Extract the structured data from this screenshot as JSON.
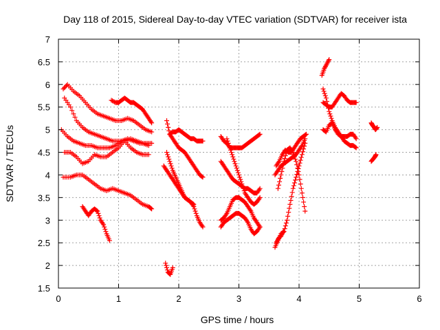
{
  "chart_data": {
    "type": "scatter",
    "title": "Day 118 of 2015, Sidereal Day-to-day VTEC variation (SDTVAR) for receiver ista",
    "xlabel": "GPS time / hours",
    "ylabel": "SDTVAR / TECUs",
    "xlim": [
      0,
      6
    ],
    "ylim": [
      1.5,
      7
    ],
    "xticks": [
      "0",
      "1",
      "2",
      "3",
      "4",
      "5",
      "6"
    ],
    "yticks": [
      "1.5",
      "2",
      "2.5",
      "3",
      "3.5",
      "4",
      "4.5",
      "5",
      "5.5",
      "6",
      "6.5",
      "7"
    ],
    "grid": true,
    "marker": "+",
    "color": "#ff0000",
    "series": [
      {
        "x": [
          0.08,
          0.15,
          0.25,
          0.35,
          0.45,
          0.55,
          0.65,
          0.75,
          0.85,
          0.95,
          1.05,
          1.15,
          1.25,
          1.35,
          1.45,
          1.55
        ],
        "y": [
          5.9,
          6.0,
          5.85,
          5.75,
          5.6,
          5.45,
          5.35,
          5.3,
          5.25,
          5.2,
          5.2,
          5.25,
          5.2,
          5.1,
          5.0,
          4.95
        ]
      },
      {
        "x": [
          0.1,
          0.2,
          0.3,
          0.4,
          0.5,
          0.6,
          0.7,
          0.8,
          0.9,
          1.0,
          1.1,
          1.2,
          1.3,
          1.4,
          1.5
        ],
        "y": [
          5.7,
          5.5,
          5.2,
          5.05,
          4.95,
          4.9,
          4.85,
          4.8,
          4.75,
          4.75,
          4.75,
          4.8,
          4.75,
          4.7,
          4.65
        ]
      },
      {
        "x": [
          0.05,
          0.15,
          0.25,
          0.35,
          0.45,
          0.55,
          0.65,
          0.75,
          0.85,
          0.95,
          1.05,
          1.15,
          1.25,
          1.35,
          1.45,
          1.55
        ],
        "y": [
          5.0,
          4.85,
          4.75,
          4.7,
          4.65,
          4.65,
          4.6,
          4.6,
          4.6,
          4.65,
          4.75,
          4.8,
          4.75,
          4.7,
          4.7,
          4.7
        ]
      },
      {
        "x": [
          0.1,
          0.2,
          0.3,
          0.4,
          0.5,
          0.6,
          0.7,
          0.8,
          0.9,
          1.0,
          1.1,
          1.2,
          1.3,
          1.4,
          1.5
        ],
        "y": [
          4.5,
          4.5,
          4.4,
          4.25,
          4.3,
          4.45,
          4.4,
          4.4,
          4.5,
          4.6,
          4.75,
          4.6,
          4.5,
          4.45,
          4.45
        ]
      },
      {
        "x": [
          0.08,
          0.2,
          0.3,
          0.4,
          0.5,
          0.6,
          0.7,
          0.8,
          0.9,
          1.0,
          1.1,
          1.2,
          1.3,
          1.4,
          1.5,
          1.55
        ],
        "y": [
          3.95,
          3.95,
          4.0,
          4.0,
          3.9,
          3.8,
          3.7,
          3.65,
          3.7,
          3.65,
          3.6,
          3.55,
          3.45,
          3.35,
          3.3,
          3.25
        ]
      },
      {
        "x": [
          0.4,
          0.45,
          0.5,
          0.55,
          0.6,
          0.65,
          0.7,
          0.75,
          0.8,
          0.85
        ],
        "y": [
          3.3,
          3.2,
          3.1,
          3.2,
          3.25,
          3.2,
          3.0,
          2.9,
          2.7,
          2.55
        ]
      },
      {
        "x": [
          0.88,
          0.95,
          1.0,
          1.05,
          1.1,
          1.15,
          1.2,
          1.25,
          1.3,
          1.35,
          1.4,
          1.45,
          1.5,
          1.55
        ],
        "y": [
          5.65,
          5.6,
          5.6,
          5.65,
          5.7,
          5.65,
          5.6,
          5.6,
          5.55,
          5.5,
          5.45,
          5.35,
          5.25,
          5.15
        ]
      },
      {
        "x": [
          1.8,
          1.85,
          1.9,
          1.95,
          2.0,
          2.05,
          2.1,
          2.15,
          2.2,
          2.25,
          2.3,
          2.35,
          2.4
        ],
        "y": [
          5.2,
          4.9,
          4.95,
          4.95,
          5.0,
          4.95,
          4.9,
          4.85,
          4.8,
          4.8,
          4.75,
          4.75,
          4.75
        ]
      },
      {
        "x": [
          1.85,
          1.9,
          1.95,
          2.0,
          2.05,
          2.1,
          2.15,
          2.2,
          2.25,
          2.3,
          2.35,
          2.4
        ],
        "y": [
          4.9,
          4.8,
          4.7,
          4.6,
          4.55,
          4.5,
          4.4,
          4.3,
          4.2,
          4.1,
          4.0,
          3.95
        ]
      },
      {
        "x": [
          1.75,
          1.8,
          1.85,
          1.9,
          1.95,
          2.0,
          2.05,
          2.1,
          2.15,
          2.2,
          2.25,
          2.3,
          2.35,
          2.4
        ],
        "y": [
          4.2,
          4.1,
          4.0,
          3.9,
          3.8,
          3.7,
          3.6,
          3.5,
          3.45,
          3.4,
          3.3,
          3.1,
          2.95,
          2.85
        ]
      },
      {
        "x": [
          1.8,
          1.85,
          1.9,
          1.95,
          2.0,
          2.05,
          2.1,
          2.15,
          2.2,
          2.25
        ],
        "y": [
          4.5,
          4.3,
          4.1,
          3.95,
          3.8,
          3.65,
          3.5,
          3.45,
          3.4,
          3.35
        ]
      },
      {
        "x": [
          1.78,
          1.82,
          1.86,
          1.9
        ],
        "y": [
          2.05,
          1.85,
          1.8,
          1.95
        ]
      },
      {
        "x": [
          2.7,
          2.75,
          2.8,
          2.85,
          2.9,
          2.95,
          3.0,
          3.05,
          3.1,
          3.15,
          3.2,
          3.25,
          3.3,
          3.35
        ],
        "y": [
          4.85,
          4.75,
          4.7,
          4.6,
          4.6,
          4.6,
          4.6,
          4.6,
          4.65,
          4.7,
          4.75,
          4.8,
          4.85,
          4.9
        ]
      },
      {
        "x": [
          2.7,
          2.75,
          2.8,
          2.85,
          2.9,
          2.95,
          3.0,
          3.05,
          3.1,
          3.15,
          3.2,
          3.25,
          3.3,
          3.35
        ],
        "y": [
          4.3,
          4.2,
          4.1,
          4.0,
          3.9,
          3.85,
          3.8,
          3.75,
          3.7,
          3.7,
          3.65,
          3.6,
          3.6,
          3.7
        ]
      },
      {
        "x": [
          2.7,
          2.75,
          2.8,
          2.85,
          2.9,
          2.95,
          3.0,
          3.05,
          3.1,
          3.15,
          3.2,
          3.25,
          3.3,
          3.35
        ],
        "y": [
          3.0,
          3.05,
          3.15,
          3.3,
          3.45,
          3.5,
          3.5,
          3.45,
          3.4,
          3.3,
          3.2,
          3.05,
          2.95,
          2.85
        ]
      },
      {
        "x": [
          2.7,
          2.75,
          2.8,
          2.85,
          2.9,
          2.95,
          3.0,
          3.05,
          3.1,
          3.15,
          3.2,
          3.25,
          3.3,
          3.35
        ],
        "y": [
          2.85,
          2.95,
          3.0,
          3.05,
          3.1,
          3.15,
          3.15,
          3.1,
          3.05,
          2.95,
          2.8,
          2.7,
          2.75,
          2.85
        ]
      },
      {
        "x": [
          2.8,
          2.85,
          2.9,
          2.95,
          3.0,
          3.05,
          3.1,
          3.15,
          3.2,
          3.25,
          3.3,
          3.35
        ],
        "y": [
          4.8,
          4.6,
          4.4,
          4.2,
          4.0,
          3.8,
          3.6,
          3.5,
          3.4,
          3.35,
          3.4,
          3.5
        ]
      },
      {
        "x": [
          3.6,
          3.65,
          3.7,
          3.75,
          3.8,
          3.85,
          3.9,
          3.95,
          4.0,
          4.05,
          4.1
        ],
        "y": [
          2.4,
          2.55,
          2.7,
          2.75,
          3.0,
          3.35,
          3.7,
          3.95,
          4.2,
          4.45,
          4.7
        ]
      },
      {
        "x": [
          3.6,
          3.65,
          3.7,
          3.75,
          3.8,
          3.85,
          3.9,
          3.95,
          4.0,
          4.05,
          4.1
        ],
        "y": [
          4.0,
          4.1,
          4.2,
          4.25,
          4.3,
          4.35,
          4.4,
          4.45,
          4.55,
          4.65,
          4.8
        ]
      },
      {
        "x": [
          3.62,
          3.67,
          3.72,
          3.77,
          3.82,
          3.87,
          3.92,
          3.97,
          4.02,
          4.07,
          4.12
        ],
        "y": [
          4.2,
          4.3,
          4.45,
          4.55,
          4.5,
          4.5,
          4.6,
          4.7,
          4.8,
          4.85,
          4.9
        ]
      },
      {
        "x": [
          3.65,
          3.7,
          3.75,
          3.8,
          3.85,
          3.9,
          3.95,
          4.0,
          4.05,
          4.1
        ],
        "y": [
          3.7,
          4.0,
          4.3,
          4.55,
          4.6,
          4.5,
          4.3,
          4.0,
          3.6,
          3.2
        ]
      },
      {
        "x": [
          3.62,
          3.66,
          3.7,
          3.74
        ],
        "y": [
          2.5,
          2.6,
          2.65,
          2.75
        ]
      },
      {
        "x": [
          4.4,
          4.45,
          4.5,
          4.55,
          4.6,
          4.65,
          4.7,
          4.75,
          4.8,
          4.85,
          4.9,
          4.95
        ],
        "y": [
          5.6,
          5.55,
          5.5,
          5.5,
          5.6,
          5.7,
          5.8,
          5.75,
          5.65,
          5.6,
          5.6,
          5.6
        ]
      },
      {
        "x": [
          4.4,
          4.45,
          4.5,
          4.55,
          4.6,
          4.65,
          4.7,
          4.75,
          4.8,
          4.85,
          4.9,
          4.95
        ],
        "y": [
          5.0,
          4.95,
          5.1,
          5.15,
          5.0,
          4.9,
          4.85,
          4.85,
          4.85,
          4.9,
          4.9,
          4.8
        ]
      },
      {
        "x": [
          4.4,
          4.45,
          4.5,
          4.55,
          4.6,
          4.65,
          4.7,
          4.75,
          4.8,
          4.85,
          4.9,
          4.95
        ],
        "y": [
          5.9,
          5.7,
          5.4,
          5.2,
          5.05,
          4.95,
          4.85,
          4.75,
          4.7,
          4.65,
          4.65,
          4.6
        ]
      },
      {
        "x": [
          4.38,
          4.42,
          4.46,
          4.5
        ],
        "y": [
          6.2,
          6.35,
          6.45,
          6.55
        ]
      },
      {
        "x": [
          5.2,
          5.22,
          5.25,
          5.27,
          5.3
        ],
        "y": [
          5.15,
          5.1,
          5.05,
          5.0,
          5.05
        ]
      },
      {
        "x": [
          5.2,
          5.23,
          5.26,
          5.28
        ],
        "y": [
          4.3,
          4.35,
          4.4,
          4.45
        ]
      }
    ]
  }
}
